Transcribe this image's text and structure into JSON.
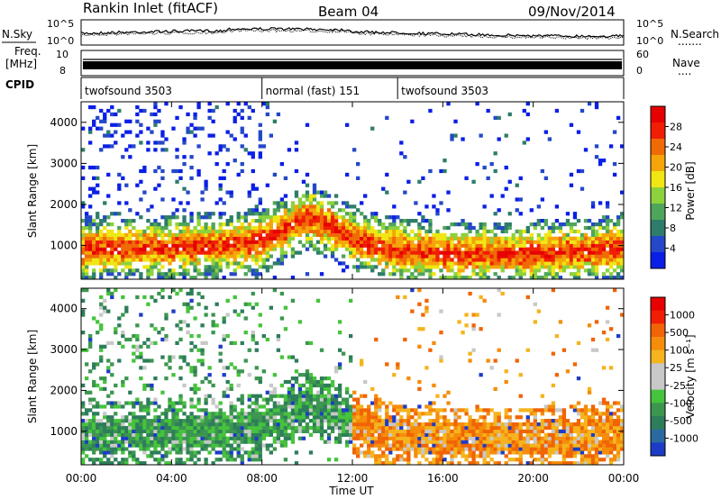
{
  "header": {
    "station": "Rankin Inlet (fitACF)",
    "beam": "Beam 04",
    "date": "09/Nov/2014"
  },
  "noise_panel": {
    "left_label": "N.Sky",
    "right_label": "N.Search",
    "right_dots": ".......",
    "left_ticks": [
      "10^5",
      "10^0"
    ],
    "right_ticks": [
      "10^5",
      "10^0"
    ]
  },
  "freq_panel": {
    "left_label_1": "Freq.",
    "left_label_2": "[MHz]",
    "left_ticks": [
      "10",
      "8"
    ],
    "right_label": "Nave",
    "right_dots": "....",
    "right_ticks": [
      "60",
      "0"
    ]
  },
  "cpid_panel": {
    "label": "CPID",
    "segments": [
      {
        "name": "twofsound 3503",
        "start_hour": 0,
        "end_hour": 8
      },
      {
        "name": "normal (fast) 151",
        "start_hour": 8,
        "end_hour": 14
      },
      {
        "name": "twofsound 3503",
        "start_hour": 14,
        "end_hour": 24
      }
    ]
  },
  "x_axis": {
    "label": "Time UT",
    "ticks": [
      "00:00",
      "04:00",
      "08:00",
      "12:00",
      "16:00",
      "20:00",
      "00:00"
    ],
    "range_hours": [
      0,
      24
    ]
  },
  "power_panel": {
    "ylabel": "Slant Range [km]",
    "yticks": [
      "1000",
      "2000",
      "3000",
      "4000"
    ],
    "colorbar_label": "Power [dB]",
    "colorbar_ticks": [
      "4",
      "8",
      "12",
      "16",
      "20",
      "24",
      "28"
    ],
    "colors": [
      "#0a1ee6",
      "#2448c8",
      "#2d7d6a",
      "#4fa55a",
      "#8cd23c",
      "#f0e614",
      "#f5a50a",
      "#f06a05",
      "#f01e05",
      "#e60000"
    ]
  },
  "velocity_panel": {
    "ylabel": "Slant Range [km]",
    "yticks": [
      "1000",
      "2000",
      "3000",
      "4000"
    ],
    "colorbar_label": "Velocity [m s⁻¹]",
    "colorbar_ticks": [
      "1000",
      "500",
      "100",
      "25",
      "-25",
      "-100",
      "-500",
      "-1000"
    ],
    "colors": [
      "#1c3cc8",
      "#2a6aa0",
      "#2d7d5a",
      "#3c9650",
      "#46c33c",
      "#c8c8c8",
      "#c8c8c8",
      "#f5b41e",
      "#f58c0a",
      "#f06405",
      "#f01e05",
      "#e60000"
    ]
  },
  "chart_data": {
    "type": "heatmap",
    "title": "Rankin Inlet (fitACF)  Beam 04  09/Nov/2014",
    "xlabel": "Time UT",
    "ylabel": "Slant Range [km]",
    "x_range_hours": [
      0,
      24
    ],
    "y_range_km": [
      180,
      4500
    ],
    "power_band_center_km": {
      "hours": [
        0,
        2,
        4,
        6,
        8,
        9,
        10,
        11,
        12,
        13,
        14,
        16,
        18,
        20,
        22,
        24
      ],
      "range_km": [
        900,
        950,
        950,
        1000,
        1100,
        1400,
        1700,
        1500,
        1200,
        1000,
        900,
        800,
        800,
        800,
        850,
        950
      ]
    },
    "power_db_range": [
      0,
      32
    ],
    "velocity_ms_range": [
      -1000,
      1000
    ]
  }
}
